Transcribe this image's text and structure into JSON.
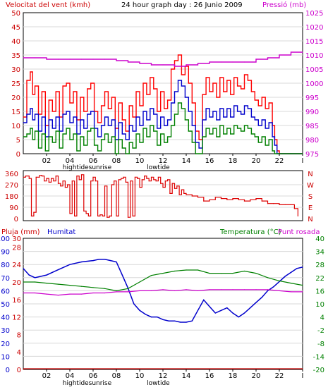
{
  "header": {
    "wind_label": "Velocitat del vent (kmh)",
    "title": "24 hour graph day : 26 Junio 2009",
    "pressure_label": "Pressió (mb)"
  },
  "bottom_header": {
    "rain_label": "Pluja (mm)",
    "humidity_label": "Humitat",
    "temperature_label": "Temperatura (°C)",
    "dewpoint_label": "Punt rosada"
  },
  "colors": {
    "wind_gust": "#ff0000",
    "wind_avg": "#0000cc",
    "wind_min": "#008000",
    "pressure": "#cc00cc",
    "direction": "#dd0000",
    "humidity": "#0000cc",
    "temperature": "#008000",
    "dewpoint": "#cc00cc",
    "rain": "#cc0000",
    "axis_left": "#cc0000",
    "axis_blue": "#0000cc",
    "axis_right_temp": "#008000",
    "axis_right_press": "#cc00cc"
  },
  "x_axis": {
    "ticks": [
      "02",
      "04",
      "06",
      "08",
      "10",
      "12",
      "14",
      "16",
      "18",
      "20",
      "22",
      "I"
    ],
    "annotations_top": [
      {
        "label": "hightide",
        "hour": 4.5
      },
      {
        "label": "sunrise",
        "hour": 6.6
      },
      {
        "label": "lowtide",
        "hour": 11.6
      }
    ],
    "annotations_bottom": [
      {
        "label": "hightide",
        "hour": 4.5
      },
      {
        "label": "sunrise",
        "hour": 6.6
      },
      {
        "label": "lowtide",
        "hour": 11.6
      }
    ]
  },
  "chart_data": [
    {
      "type": "line",
      "title": "24 hour graph day : 26 Junio 2009",
      "ylabel": "Velocitat del vent (kmh)",
      "y2label": "Pressió (mb)",
      "xlim": [
        0,
        24
      ],
      "ylim": [
        0,
        50
      ],
      "y2lim": [
        975,
        1025
      ],
      "yticks": [
        0,
        5,
        10,
        15,
        20,
        25,
        30,
        35,
        40,
        45,
        50
      ],
      "y2ticks": [
        975,
        980,
        985,
        990,
        995,
        1000,
        1005,
        1010,
        1015,
        1020,
        1025
      ],
      "series": [
        {
          "name": "wind_gust",
          "axis": "left",
          "x": [
            0,
            0.3,
            0.6,
            0.8,
            1.0,
            1.3,
            1.6,
            1.9,
            2.2,
            2.5,
            2.8,
            3.1,
            3.4,
            3.7,
            4.0,
            4.3,
            4.6,
            4.9,
            5.2,
            5.5,
            5.8,
            6.1,
            6.4,
            6.7,
            7.0,
            7.3,
            7.6,
            7.9,
            8.2,
            8.5,
            8.8,
            9.1,
            9.4,
            9.7,
            10.0,
            10.3,
            10.6,
            10.9,
            11.2,
            11.5,
            11.8,
            12.1,
            12.4,
            12.7,
            13.0,
            13.3,
            13.6,
            13.9,
            14.2,
            14.5,
            14.8,
            15.1,
            15.4,
            15.7,
            16.0,
            16.3,
            16.6,
            16.9,
            17.2,
            17.5,
            17.8,
            18.1,
            18.4,
            18.7,
            19.0,
            19.3,
            19.6,
            19.9,
            20.2,
            20.5,
            20.8,
            21.1,
            21.4,
            21.6,
            21.8,
            22.0,
            23.0,
            24.0
          ],
          "y": [
            13,
            26,
            29,
            21,
            24,
            14,
            22,
            10,
            19,
            15,
            22,
            13,
            24,
            25,
            18,
            22,
            12,
            20,
            15,
            23,
            25,
            15,
            11,
            17,
            22,
            16,
            20,
            9,
            18,
            12,
            8,
            17,
            13,
            22,
            17,
            25,
            21,
            27,
            23,
            15,
            22,
            16,
            19,
            30,
            33,
            35,
            28,
            31,
            25,
            18,
            8,
            5,
            21,
            27,
            22,
            25,
            20,
            27,
            22,
            26,
            21,
            27,
            24,
            23,
            28,
            26,
            22,
            19,
            17,
            20,
            16,
            18,
            10,
            5,
            1,
            0,
            0,
            0
          ]
        },
        {
          "name": "wind_avg",
          "axis": "left",
          "x": [
            0,
            0.3,
            0.6,
            0.8,
            1.0,
            1.3,
            1.6,
            1.9,
            2.2,
            2.5,
            2.8,
            3.1,
            3.4,
            3.7,
            4.0,
            4.3,
            4.6,
            4.9,
            5.2,
            5.5,
            5.8,
            6.1,
            6.4,
            6.7,
            7.0,
            7.3,
            7.6,
            7.9,
            8.2,
            8.5,
            8.8,
            9.1,
            9.4,
            9.7,
            10.0,
            10.3,
            10.6,
            10.9,
            11.2,
            11.5,
            11.8,
            12.1,
            12.4,
            12.7,
            13.0,
            13.3,
            13.6,
            13.9,
            14.2,
            14.5,
            14.8,
            15.1,
            15.4,
            15.7,
            16.0,
            16.3,
            16.6,
            16.9,
            17.2,
            17.5,
            17.8,
            18.1,
            18.4,
            18.7,
            19.0,
            19.3,
            19.6,
            19.9,
            20.2,
            20.5,
            20.8,
            21.1,
            21.4,
            21.6,
            21.8,
            22.0,
            23.0,
            24.0
          ],
          "y": [
            11,
            14,
            16,
            12,
            14,
            8,
            13,
            6,
            12,
            9,
            13,
            8,
            14,
            15,
            11,
            13,
            7,
            12,
            9,
            14,
            15,
            9,
            6,
            10,
            13,
            10,
            12,
            5,
            11,
            7,
            5,
            10,
            8,
            13,
            10,
            15,
            12,
            16,
            14,
            9,
            13,
            10,
            12,
            18,
            22,
            26,
            24,
            20,
            15,
            10,
            4,
            2,
            12,
            16,
            13,
            15,
            12,
            16,
            13,
            16,
            13,
            17,
            15,
            14,
            17,
            16,
            13,
            12,
            10,
            12,
            9,
            11,
            6,
            3,
            0,
            0,
            0,
            0
          ]
        },
        {
          "name": "wind_min",
          "axis": "left",
          "x": [
            0,
            0.3,
            0.6,
            0.8,
            1.0,
            1.3,
            1.6,
            1.9,
            2.2,
            2.5,
            2.8,
            3.1,
            3.4,
            3.7,
            4.0,
            4.3,
            4.6,
            4.9,
            5.2,
            5.5,
            5.8,
            6.1,
            6.4,
            6.7,
            7.0,
            7.3,
            7.6,
            7.9,
            8.2,
            8.5,
            8.8,
            9.1,
            9.4,
            9.7,
            10.0,
            10.3,
            10.6,
            10.9,
            11.2,
            11.5,
            11.8,
            12.1,
            12.4,
            12.7,
            13.0,
            13.3,
            13.6,
            13.9,
            14.2,
            14.5,
            14.8,
            15.1,
            15.4,
            15.7,
            16.0,
            16.3,
            16.6,
            16.9,
            17.2,
            17.5,
            17.8,
            18.1,
            18.4,
            18.7,
            19.0,
            19.3,
            19.6,
            19.9,
            20.2,
            20.5,
            20.8,
            21.1,
            21.4,
            21.6,
            21.8,
            22.0,
            23.0,
            24.0
          ],
          "y": [
            6,
            7,
            9,
            5,
            8,
            2,
            7,
            1,
            6,
            4,
            8,
            2,
            7,
            9,
            5,
            7,
            1,
            6,
            3,
            8,
            9,
            3,
            1,
            5,
            7,
            4,
            6,
            0,
            5,
            2,
            0,
            4,
            2,
            7,
            4,
            9,
            6,
            10,
            8,
            3,
            7,
            4,
            6,
            10,
            14,
            18,
            16,
            12,
            8,
            4,
            0,
            0,
            6,
            9,
            7,
            9,
            6,
            10,
            7,
            9,
            7,
            10,
            9,
            8,
            10,
            9,
            7,
            6,
            4,
            6,
            3,
            5,
            1,
            0,
            0,
            0,
            0,
            0
          ]
        },
        {
          "name": "pressure",
          "axis": "right",
          "x": [
            0,
            1,
            2,
            3,
            4,
            5,
            6,
            7,
            8,
            9,
            10,
            11,
            12,
            13,
            14,
            15,
            16,
            17,
            18,
            19,
            20,
            21,
            22,
            23,
            24
          ],
          "y": [
            1009,
            1009,
            1008.5,
            1008.5,
            1008.5,
            1008.5,
            1008.5,
            1008.5,
            1008,
            1007.5,
            1007,
            1006.5,
            1006.5,
            1006,
            1006.5,
            1007,
            1007.5,
            1007.5,
            1007.5,
            1007.5,
            1008.5,
            1009,
            1010,
            1011,
            1011
          ]
        }
      ]
    },
    {
      "type": "line",
      "ylabel": "",
      "xlim": [
        0,
        24
      ],
      "ylim": [
        0,
        360
      ],
      "yticks": [
        0,
        90,
        180,
        270,
        360
      ],
      "right_labels": [
        "N",
        "W",
        "S",
        "E",
        "N"
      ],
      "series": [
        {
          "name": "wind_direction",
          "x": [
            0,
            0.2,
            0.5,
            0.7,
            0.9,
            1.1,
            1.4,
            1.6,
            1.8,
            2.0,
            2.2,
            2.4,
            2.6,
            2.8,
            3.0,
            3.2,
            3.4,
            3.6,
            3.8,
            4.0,
            4.2,
            4.4,
            4.6,
            4.8,
            5.0,
            5.2,
            5.4,
            5.6,
            5.8,
            6.0,
            6.2,
            6.4,
            6.6,
            6.8,
            7.0,
            7.2,
            7.4,
            7.6,
            7.8,
            8.0,
            8.2,
            8.4,
            8.6,
            8.8,
            9.0,
            9.2,
            9.4,
            9.6,
            9.8,
            10.0,
            10.2,
            10.4,
            10.6,
            10.8,
            11.0,
            11.2,
            11.4,
            11.6,
            11.8,
            12.0,
            12.2,
            12.4,
            12.6,
            12.8,
            13.0,
            13.2,
            13.4,
            13.6,
            13.8,
            14.0,
            14.5,
            15.0,
            15.5,
            16.0,
            16.5,
            17.0,
            17.5,
            18.0,
            18.5,
            19.0,
            19.5,
            20.0,
            20.5,
            21.0,
            21.5,
            22.0,
            22.5,
            23.0,
            23.3,
            23.6
          ],
          "y": [
            330,
            340,
            320,
            20,
            50,
            330,
            345,
            340,
            300,
            320,
            290,
            320,
            300,
            340,
            280,
            260,
            300,
            250,
            270,
            40,
            300,
            20,
            340,
            310,
            350,
            60,
            40,
            20,
            300,
            330,
            300,
            20,
            30,
            20,
            260,
            10,
            20,
            270,
            300,
            20,
            310,
            320,
            330,
            290,
            10,
            300,
            20,
            330,
            320,
            250,
            310,
            340,
            320,
            300,
            330,
            310,
            300,
            330,
            280,
            250,
            300,
            310,
            200,
            280,
            240,
            260,
            190,
            230,
            200,
            190,
            180,
            170,
            140,
            150,
            170,
            160,
            150,
            160,
            150,
            140,
            150,
            160,
            140,
            120,
            120,
            110,
            110,
            110,
            80,
            20
          ]
        }
      ]
    },
    {
      "type": "line",
      "ylabel": "Humitat",
      "y2label": "Temperatura (°C)",
      "xlim": [
        0,
        24
      ],
      "ylim": [
        0,
        100
      ],
      "yticks": [
        0,
        10,
        20,
        30,
        40,
        50,
        60,
        70,
        80,
        90,
        100
      ],
      "rain_ticks": [
        0,
        4,
        8,
        12,
        16,
        20,
        24,
        28,
        30
      ],
      "y2lim": [
        -20,
        40
      ],
      "y2ticks": [
        -20,
        -14,
        -8,
        -2,
        4,
        10,
        16,
        22,
        28,
        34,
        40
      ],
      "series": [
        {
          "name": "humidity",
          "axis": "left",
          "x": [
            0,
            0.5,
            1,
            2,
            3,
            4,
            5,
            6,
            6.5,
            7,
            7.5,
            8,
            8.5,
            9,
            9.5,
            10,
            10.5,
            11,
            11.5,
            12,
            12.5,
            13,
            13.5,
            14,
            14.5,
            15,
            15.5,
            16,
            16.5,
            17,
            17.5,
            18,
            18.5,
            19,
            19.5,
            20,
            20.5,
            21,
            21.5,
            22,
            22.5,
            23,
            23.5,
            24
          ],
          "y": [
            77,
            72,
            70,
            72,
            76,
            80,
            82,
            83,
            84,
            84,
            83,
            82,
            72,
            62,
            50,
            45,
            42,
            40,
            40,
            38,
            37,
            37,
            36,
            36,
            37,
            45,
            53,
            48,
            43,
            45,
            47,
            43,
            40,
            43,
            47,
            51,
            55,
            60,
            63,
            67,
            71,
            74,
            77,
            78
          ]
        },
        {
          "name": "temperature",
          "axis": "right",
          "x": [
            0,
            1,
            2,
            3,
            4,
            5,
            6,
            7,
            8,
            9,
            10,
            11,
            12,
            13,
            14,
            15,
            16,
            17,
            18,
            19,
            20,
            21,
            22,
            23,
            24
          ],
          "y": [
            20,
            20,
            19.5,
            19,
            18.5,
            18,
            17.5,
            17,
            16,
            17,
            20,
            23,
            24,
            25,
            25.5,
            25.5,
            24,
            24,
            24,
            25,
            24,
            22,
            20.5,
            19.5,
            18.5
          ]
        },
        {
          "name": "dewpoint",
          "axis": "right",
          "x": [
            0,
            1,
            2,
            3,
            4,
            5,
            6,
            7,
            8,
            9,
            10,
            11,
            12,
            13,
            14,
            15,
            16,
            17,
            18,
            19,
            20,
            21,
            22,
            23,
            24
          ],
          "y": [
            15,
            15,
            14.5,
            14,
            14.5,
            14.5,
            15,
            15,
            15.5,
            15.5,
            16,
            16,
            16.5,
            16,
            16.5,
            16,
            16.5,
            16.5,
            16.5,
            16.5,
            16.5,
            16.5,
            16,
            15.5,
            15.5
          ]
        },
        {
          "name": "rain",
          "axis": "left",
          "x": [
            0,
            24
          ],
          "y": [
            0,
            0
          ]
        }
      ]
    }
  ]
}
